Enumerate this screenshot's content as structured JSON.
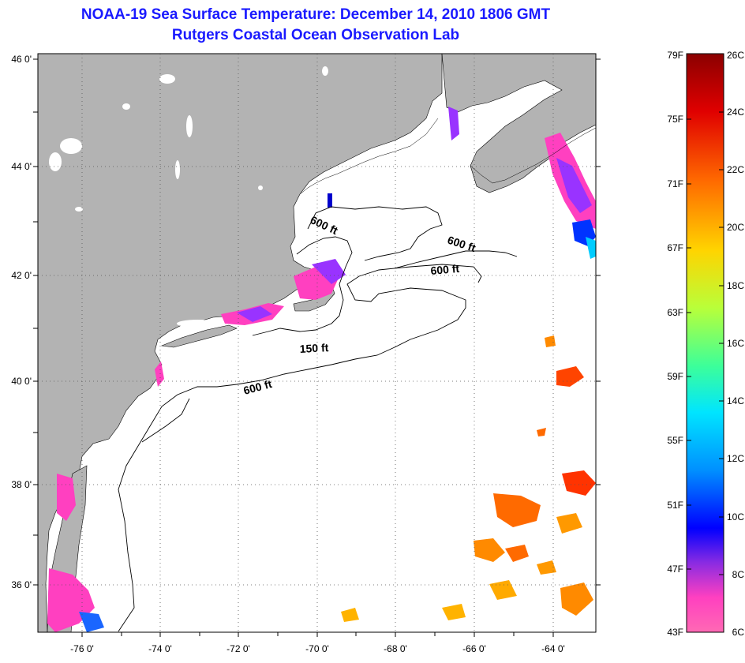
{
  "title": "NOAA-19 Sea Surface Temperature:  December 14, 2010 1806 GMT",
  "subtitle": "Rutgers Coastal Ocean Observation Lab",
  "map": {
    "lat_labels": [
      "46 0'",
      "44 0'",
      "42 0'",
      "40 0'",
      "38 0'",
      "36 0'"
    ],
    "lon_labels": [
      "-76 0'",
      "-74 0'",
      "-72 0'",
      "-70 0'",
      "-68 0'",
      "-66 0'",
      "-64 0'"
    ],
    "contour_labels": [
      "600 ft",
      "600 ft",
      "600 ft",
      "150 ft",
      "600 ft"
    ],
    "colors": {
      "land": "#b3b3b3",
      "ocean": "#ffffff",
      "grid": "#555555"
    }
  },
  "colorbar": {
    "fahrenheit": [
      "79F",
      "75F",
      "71F",
      "67F",
      "63F",
      "59F",
      "55F",
      "51F",
      "47F",
      "43F"
    ],
    "celsius": [
      "26C",
      "24C",
      "22C",
      "20C",
      "18C",
      "16C",
      "14C",
      "12C",
      "10C",
      "8C",
      "6C"
    ],
    "gradient": [
      "#8b0000",
      "#e00000",
      "#ff6a00",
      "#ffd400",
      "#b8ff3a",
      "#3cff9a",
      "#00e5ff",
      "#0090ff",
      "#0000ff",
      "#8a2be2",
      "#ff40c0",
      "#ff69b4"
    ]
  }
}
